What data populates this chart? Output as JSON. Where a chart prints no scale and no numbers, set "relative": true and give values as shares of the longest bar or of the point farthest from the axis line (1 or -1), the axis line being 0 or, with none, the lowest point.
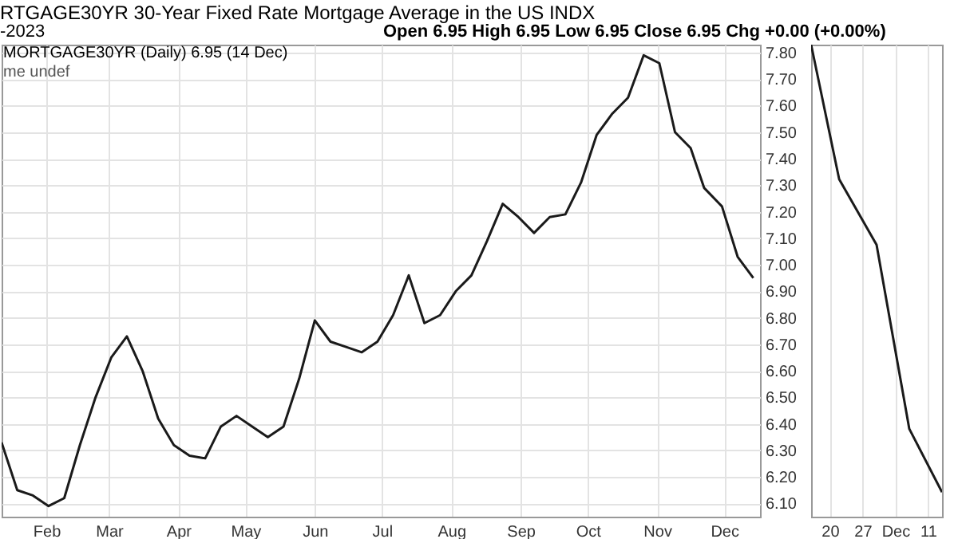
{
  "chart_data": [
    {
      "type": "line",
      "title": "RTGAGE30YR 30-Year Fixed Rate Mortgage Average in the US INDX",
      "subtitle": "-2023",
      "annotations": [
        "Open 6.95  High 6.95  Low 6.95  Close 6.95  Chg +0.00 (+0.00%)",
        "MORTGAGE30YR (Daily) 6.95 (14 Dec)",
        "me undef"
      ],
      "x": [
        "2023-01-12",
        "2023-01-19",
        "2023-01-26",
        "2023-02-02",
        "2023-02-09",
        "2023-02-16",
        "2023-02-23",
        "2023-03-02",
        "2023-03-09",
        "2023-03-16",
        "2023-03-23",
        "2023-03-30",
        "2023-04-06",
        "2023-04-13",
        "2023-04-20",
        "2023-04-27",
        "2023-05-04",
        "2023-05-11",
        "2023-05-18",
        "2023-05-25",
        "2023-06-01",
        "2023-06-08",
        "2023-06-15",
        "2023-06-22",
        "2023-06-29",
        "2023-07-06",
        "2023-07-13",
        "2023-07-20",
        "2023-07-27",
        "2023-08-03",
        "2023-08-10",
        "2023-08-17",
        "2023-08-24",
        "2023-08-31",
        "2023-09-07",
        "2023-09-14",
        "2023-09-21",
        "2023-09-28",
        "2023-10-05",
        "2023-10-12",
        "2023-10-19",
        "2023-10-26",
        "2023-11-02",
        "2023-11-09",
        "2023-11-16",
        "2023-11-22",
        "2023-11-30",
        "2023-12-07",
        "2023-12-14"
      ],
      "series": [
        {
          "color": "#1a1a1a",
          "values": [
            6.33,
            6.15,
            6.13,
            6.09,
            6.12,
            6.32,
            6.5,
            6.65,
            6.73,
            6.6,
            6.42,
            6.32,
            6.28,
            6.27,
            6.39,
            6.43,
            6.39,
            6.35,
            6.39,
            6.57,
            6.79,
            6.71,
            6.69,
            6.67,
            6.71,
            6.81,
            6.96,
            6.78,
            6.81,
            6.9,
            6.96,
            7.09,
            7.23,
            7.18,
            7.12,
            7.18,
            7.19,
            7.31,
            7.49,
            7.57,
            7.63,
            7.79,
            7.76,
            7.5,
            7.44,
            7.29,
            7.22,
            7.03,
            6.95
          ]
        }
      ],
      "xlim": [
        "2023-01-12",
        "2023-12-17"
      ],
      "xticks": [
        {
          "value": "2023-02-01",
          "label": "Feb"
        },
        {
          "value": "2023-03-01",
          "label": "Mar"
        },
        {
          "value": "2023-04-01",
          "label": "Apr"
        },
        {
          "value": "2023-05-01",
          "label": "May"
        },
        {
          "value": "2023-06-01",
          "label": "Jun"
        },
        {
          "value": "2023-07-01",
          "label": "Jul"
        },
        {
          "value": "2023-08-01",
          "label": "Aug"
        },
        {
          "value": "2023-09-01",
          "label": "Sep"
        },
        {
          "value": "2023-10-01",
          "label": "Oct"
        },
        {
          "value": "2023-11-01",
          "label": "Nov"
        },
        {
          "value": "2023-12-01",
          "label": "Dec"
        }
      ],
      "ylim": [
        6.05,
        7.83
      ],
      "yticks": [
        {
          "value": 6.1,
          "label": "6.10"
        },
        {
          "value": 6.2,
          "label": "6.20"
        },
        {
          "value": 6.3,
          "label": "6.30"
        },
        {
          "value": 6.4,
          "label": "6.40"
        },
        {
          "value": 6.5,
          "label": "6.50"
        },
        {
          "value": 6.6,
          "label": "6.60"
        },
        {
          "value": 6.7,
          "label": "6.70"
        },
        {
          "value": 6.8,
          "label": "6.80"
        },
        {
          "value": 6.9,
          "label": "6.90"
        },
        {
          "value": 7.0,
          "label": "7.00"
        },
        {
          "value": 7.1,
          "label": "7.10"
        },
        {
          "value": 7.2,
          "label": "7.20"
        },
        {
          "value": 7.3,
          "label": "7.30"
        },
        {
          "value": 7.4,
          "label": "7.40"
        },
        {
          "value": 7.5,
          "label": "7.50"
        },
        {
          "value": 7.6,
          "label": "7.60"
        },
        {
          "value": 7.7,
          "label": "7.70"
        },
        {
          "value": 7.8,
          "label": "7.80"
        }
      ],
      "grid": true,
      "marker": "none"
    },
    {
      "type": "line",
      "relative": true,
      "x": [
        "2023-11-16",
        "2023-11-22",
        "2023-11-30",
        "2023-12-07",
        "2023-12-14"
      ],
      "series": [
        {
          "color": "#1a1a1a",
          "values": [
            1,
            0.715,
            0.576,
            0.186,
            0.052
          ]
        }
      ],
      "xlim": [
        "2023-11-16",
        "2023-12-14"
      ],
      "xticks": [
        {
          "value": "2023-11-20",
          "label": "20"
        },
        {
          "value": "2023-11-27",
          "label": "27"
        },
        {
          "value": "2023-12-04",
          "label": "Dec"
        },
        {
          "value": "2023-12-11",
          "label": "11"
        }
      ],
      "grid": "x",
      "marker": "none"
    }
  ]
}
